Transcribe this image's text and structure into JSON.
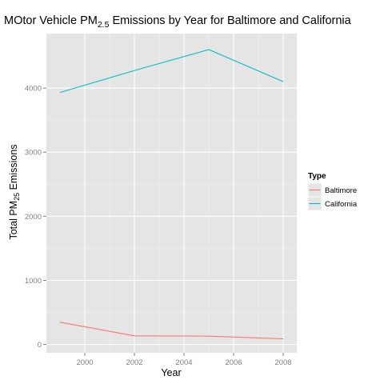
{
  "chart_data": {
    "type": "line",
    "title": {
      "prefix": "MOtor Vehicle PM",
      "subscript": "2.5",
      "suffix": " Emissions by Year for Baltimore and California"
    },
    "xlabel": "Year",
    "ylabel": {
      "prefix": "Total PM",
      "subscript": "25",
      "suffix": " Emissions"
    },
    "x": [
      1999,
      2002,
      2005,
      2008
    ],
    "x_ticks": [
      2000,
      2002,
      2004,
      2006,
      2008
    ],
    "x_tick_labels": [
      "2000",
      "2002",
      "2004",
      "2006",
      "2008"
    ],
    "xlim": [
      1998.45,
      2008.55
    ],
    "y_ticks": [
      0,
      1000,
      2000,
      3000,
      4000
    ],
    "y_tick_labels": [
      "0",
      "1000",
      "2000",
      "3000",
      "4000"
    ],
    "ylim": [
      -130,
      4850
    ],
    "grid": true,
    "legend": {
      "title": "Type",
      "placement": "right"
    },
    "series": [
      {
        "name": "Baltimore",
        "color": "#F8766D",
        "values": [
          346.8,
          134.3,
          130.4,
          88.3
        ]
      },
      {
        "name": "California",
        "color": "#00BFC4",
        "values": [
          3931,
          4274,
          4601,
          4101
        ]
      }
    ],
    "colors": {
      "panel_background": "#E5E5E5",
      "grid_major": "#FFFFFF",
      "grid_minor": "#F2F2F2",
      "tick_text": "#7F7F7F",
      "tick_mark": "#7F7F7F",
      "axis_title": "#000000"
    }
  }
}
